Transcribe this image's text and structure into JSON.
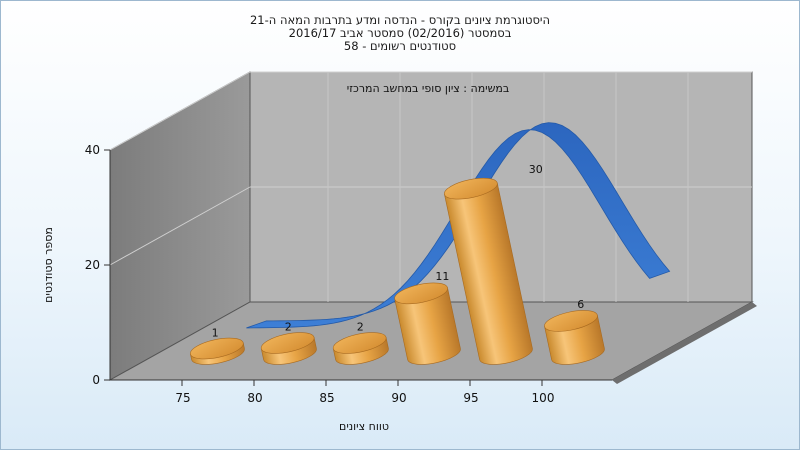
{
  "chart_data": {
    "type": "bar",
    "title_lines": [
      "היסטוגרמת ציונים בקורס - הנדסה ומדע בתרבות המאה ה-21",
      "בסמסטר  (02/2016)  סמסטר אביב 2016/17",
      "סטודנטים רשומים - 58"
    ],
    "subtitle": "במשימה : ציון סופי במחשב המרכזי",
    "xlabel": "טווח ציונים",
    "ylabel": "מספר סטודנטים",
    "x_ticks": [
      "75",
      "80",
      "85",
      "90",
      "95",
      "100"
    ],
    "y_ticks": [
      "0",
      "20",
      "40"
    ],
    "ylim": [
      0,
      40
    ],
    "categories": [
      "75-80",
      "80-85",
      "85-90",
      "90-95",
      "95-100",
      "100"
    ],
    "values": [
      1,
      2,
      2,
      11,
      30,
      6
    ],
    "data_labels": [
      "1",
      "2",
      "2",
      "11",
      "30",
      "6"
    ],
    "curve": "normal-distribution",
    "grid": true,
    "colors": {
      "bar": "#e8a040",
      "curve": "#2f6fc9",
      "back_wall": "#b5b5b5",
      "side_wall": "#8a8a8a",
      "floor": "#a5a5a5"
    }
  }
}
